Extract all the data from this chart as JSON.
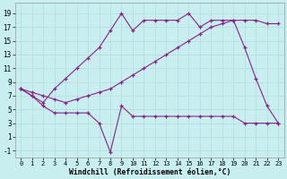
{
  "xlabel": "Windchill (Refroidissement éolien,°C)",
  "bg_color": "#c8eef0",
  "line_color": "#882288",
  "grid_color": "#b0dde0",
  "xlim_min": -0.5,
  "xlim_max": 23.5,
  "ylim_min": -2.0,
  "ylim_max": 20.5,
  "yticks": [
    -1,
    1,
    3,
    5,
    7,
    9,
    11,
    13,
    15,
    17,
    19
  ],
  "xticks": [
    0,
    1,
    2,
    3,
    4,
    5,
    6,
    7,
    8,
    9,
    10,
    11,
    12,
    13,
    14,
    15,
    16,
    17,
    18,
    19,
    20,
    21,
    22,
    23
  ],
  "s1_x": [
    0,
    1,
    2,
    3,
    4,
    5,
    6,
    7,
    8,
    9,
    10,
    11,
    12,
    13,
    14,
    15,
    16,
    17,
    18,
    19,
    20,
    21,
    22,
    23
  ],
  "s1_y": [
    8.0,
    7.0,
    5.5,
    4.5,
    4.5,
    4.5,
    4.5,
    3.0,
    -1.2,
    5.5,
    4.0,
    4.0,
    4.0,
    4.0,
    4.0,
    4.0,
    4.0,
    4.0,
    4.0,
    4.0,
    3.0,
    3.0,
    3.0,
    3.0
  ],
  "s2_x": [
    0,
    1,
    2,
    3,
    4,
    5,
    6,
    7,
    8,
    9,
    10,
    11,
    12,
    13,
    14,
    15,
    16,
    17,
    18,
    19,
    20,
    21,
    22,
    23
  ],
  "s2_y": [
    8.0,
    7.5,
    7.0,
    6.5,
    6.0,
    6.5,
    7.0,
    7.5,
    8.0,
    9.0,
    10.0,
    11.0,
    12.0,
    13.0,
    14.0,
    15.0,
    16.0,
    17.0,
    17.5,
    18.0,
    18.0,
    18.0,
    17.5,
    17.5
  ],
  "s3_x": [
    0,
    1,
    2,
    3,
    4,
    5,
    6,
    7,
    8,
    9,
    10,
    11,
    12,
    13,
    14,
    15,
    16,
    17,
    18,
    19,
    20,
    21,
    22,
    23
  ],
  "s3_y": [
    8.0,
    7.0,
    6.0,
    8.0,
    9.5,
    11.0,
    12.5,
    14.0,
    16.5,
    19.0,
    16.5,
    18.0,
    18.0,
    18.0,
    18.0,
    19.0,
    17.0,
    18.0,
    18.0,
    18.0,
    14.0,
    9.5,
    5.5,
    3.0
  ]
}
